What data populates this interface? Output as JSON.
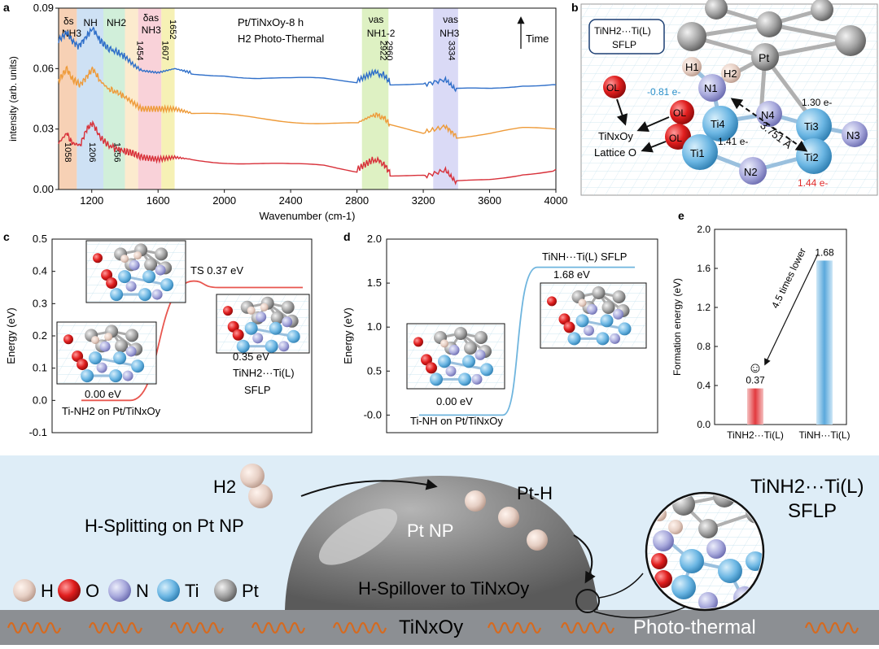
{
  "colors": {
    "blue": "#2f6fc9",
    "orange": "#ee9b3a",
    "red": "#d8313a",
    "ti": "#6bb6e3",
    "n": "#a8a9dc",
    "o": "#d91e1e",
    "h": "#e6cfc4",
    "pt": "#999999",
    "bg_panel_f": "#deedf7"
  },
  "panel_labels": {
    "a": "a",
    "b": "b",
    "c": "c",
    "d": "d",
    "e": "e",
    "f": "f"
  },
  "chart_data": [
    {
      "id": "a",
      "type": "line",
      "title": "Pt/TiNxOy-8 h",
      "subtitle": "H2 Photo-Thermal",
      "xlabel": "Wavenumber (cm-1)",
      "ylabel": "intensity (arb. units)",
      "xlim": [
        1000,
        4000
      ],
      "ylim": [
        0.0,
        0.09
      ],
      "xticks": [
        "1200",
        "1600",
        "2000",
        "2400",
        "2800",
        "3200",
        "3600",
        "4000"
      ],
      "yticks": [
        "0.00",
        "0.03",
        "0.06",
        "0.09"
      ],
      "arrow_label": "Time",
      "bands": [
        {
          "x0": 1000,
          "x1": 1110,
          "color": "#f6c9a8",
          "label": "δs NH3"
        },
        {
          "x0": 1110,
          "x1": 1270,
          "color": "#c6dcf2",
          "label": "NH"
        },
        {
          "x0": 1270,
          "x1": 1400,
          "color": "#c9ecd4",
          "label": "NH2"
        },
        {
          "x0": 1400,
          "x1": 1480,
          "color": "#fbe8c6",
          "label": ""
        },
        {
          "x0": 1480,
          "x1": 1620,
          "color": "#f8cad2",
          "label": "δas NH3"
        },
        {
          "x0": 1620,
          "x1": 1700,
          "color": "#f4efa8",
          "label": ""
        },
        {
          "x0": 2830,
          "x1": 2990,
          "color": "#d8efb8",
          "label": "νas NH1-2"
        },
        {
          "x0": 3260,
          "x1": 3410,
          "color": "#d4d4f4",
          "label": "νas NH3"
        }
      ],
      "peak_labels_top": [
        "1454",
        "1607",
        "1652",
        "2922",
        "2960",
        "3334"
      ],
      "peak_labels_bottom": [
        "1058",
        "1206",
        "1356"
      ],
      "series": [
        {
          "color": "#2f6fc9",
          "points": [
            [
              1000,
              0.074
            ],
            [
              1050,
              0.078
            ],
            [
              1080,
              0.074
            ],
            [
              1120,
              0.071
            ],
            [
              1160,
              0.075
            ],
            [
              1206,
              0.08
            ],
            [
              1250,
              0.074
            ],
            [
              1300,
              0.07
            ],
            [
              1356,
              0.068
            ],
            [
              1400,
              0.066
            ],
            [
              1450,
              0.062
            ],
            [
              1500,
              0.059
            ],
            [
              1600,
              0.058
            ],
            [
              1700,
              0.06
            ],
            [
              1800,
              0.058
            ],
            [
              2000,
              0.058
            ],
            [
              2200,
              0.056
            ],
            [
              2400,
              0.055
            ],
            [
              2600,
              0.055
            ],
            [
              2800,
              0.054
            ],
            [
              2900,
              0.058
            ],
            [
              2960,
              0.057
            ],
            [
              3000,
              0.053
            ],
            [
              3200,
              0.052
            ],
            [
              3334,
              0.055
            ],
            [
              3400,
              0.049
            ],
            [
              3600,
              0.05
            ],
            [
              3800,
              0.052
            ],
            [
              4000,
              0.052
            ]
          ]
        },
        {
          "color": "#ee9b3a",
          "points": [
            [
              1000,
              0.054
            ],
            [
              1050,
              0.06
            ],
            [
              1080,
              0.055
            ],
            [
              1130,
              0.052
            ],
            [
              1170,
              0.056
            ],
            [
              1206,
              0.06
            ],
            [
              1250,
              0.054
            ],
            [
              1300,
              0.05
            ],
            [
              1356,
              0.048
            ],
            [
              1400,
              0.046
            ],
            [
              1450,
              0.043
            ],
            [
              1500,
              0.04
            ],
            [
              1600,
              0.04
            ],
            [
              1700,
              0.04
            ],
            [
              1800,
              0.038
            ],
            [
              2000,
              0.037
            ],
            [
              2200,
              0.036
            ],
            [
              2400,
              0.035
            ],
            [
              2600,
              0.034
            ],
            [
              2800,
              0.033
            ],
            [
              2900,
              0.037
            ],
            [
              2960,
              0.036
            ],
            [
              3000,
              0.032
            ],
            [
              3200,
              0.029
            ],
            [
              3334,
              0.032
            ],
            [
              3400,
              0.027
            ],
            [
              3600,
              0.028
            ],
            [
              3800,
              0.03
            ],
            [
              4000,
              0.03
            ]
          ]
        },
        {
          "color": "#d8313a",
          "points": [
            [
              1000,
              0.023
            ],
            [
              1050,
              0.028
            ],
            [
              1080,
              0.023
            ],
            [
              1130,
              0.022
            ],
            [
              1170,
              0.03
            ],
            [
              1206,
              0.033
            ],
            [
              1250,
              0.026
            ],
            [
              1300,
              0.022
            ],
            [
              1356,
              0.02
            ],
            [
              1400,
              0.019
            ],
            [
              1450,
              0.018
            ],
            [
              1500,
              0.016
            ],
            [
              1600,
              0.015
            ],
            [
              1700,
              0.016
            ],
            [
              1800,
              0.015
            ],
            [
              2000,
              0.014
            ],
            [
              2200,
              0.013
            ],
            [
              2400,
              0.012
            ],
            [
              2600,
              0.012
            ],
            [
              2800,
              0.01
            ],
            [
              2900,
              0.015
            ],
            [
              2960,
              0.013
            ],
            [
              3000,
              0.008
            ],
            [
              3200,
              0.007
            ],
            [
              3334,
              0.01
            ],
            [
              3400,
              0.004
            ],
            [
              3600,
              0.006
            ],
            [
              3800,
              0.009
            ],
            [
              4000,
              0.01
            ]
          ]
        }
      ]
    },
    {
      "id": "c",
      "type": "line",
      "ylabel": "Energy (eV)",
      "ylim": [
        -0.1,
        0.5
      ],
      "yticks": [
        "-0.1",
        "0.0",
        "0.1",
        "0.2",
        "0.3",
        "0.4",
        "0.5"
      ],
      "series": [
        {
          "color": "#e8564f",
          "points": [
            [
              0,
              0.0
            ],
            [
              1,
              0.0
            ],
            [
              2,
              0.37
            ],
            [
              3,
              0.35
            ]
          ]
        }
      ],
      "annotations": {
        "ts": "TS 0.37 eV",
        "initial_energy": "0.00 eV",
        "initial_label": "Ti-NH2 on Pt/TiNxOy",
        "final_energy": "0.35 eV",
        "final_label_1": "TiNH2···Ti(L)",
        "final_label_2": "SFLP"
      }
    },
    {
      "id": "d",
      "type": "line",
      "ylabel": "Energy (eV)",
      "ylim": [
        -0.2,
        2.0
      ],
      "yticks": [
        "-0.0",
        "0.5",
        "1.0",
        "1.5",
        "2.0"
      ],
      "series": [
        {
          "color": "#6fb5de",
          "points": [
            [
              0,
              0.0
            ],
            [
              1,
              0.0
            ],
            [
              2,
              1.68
            ],
            [
              3,
              1.68
            ]
          ]
        }
      ],
      "annotations": {
        "final_label": "TiNH···Ti(L) SFLP",
        "final_energy": "1.68 eV",
        "initial_energy": "0.00 eV",
        "initial_label": "Ti-NH on Pt/TiNxOy"
      }
    },
    {
      "id": "e",
      "type": "bar",
      "ylabel": "Formation energy (eV)",
      "ylim": [
        0.0,
        2.0
      ],
      "yticks": [
        "0.0",
        "0.4",
        "0.8",
        "1.2",
        "1.6",
        "2.0"
      ],
      "categories": [
        "TiNH2···Ti(L)",
        "TiNH···Ti(L)"
      ],
      "values": [
        0.37,
        1.68
      ],
      "value_labels": [
        "0.37",
        "1.68"
      ],
      "annotation": "4.5 times lower",
      "smiley": "☺"
    }
  ],
  "panel_b": {
    "box_title_1": "TiNH2···Ti(L)",
    "box_title_2": "SFLP",
    "charges": [
      "-0.81 e-",
      "1.30 e-",
      "1.41 e-",
      "1.44 e-"
    ],
    "distance": "3.751 Å",
    "lattice": "Lattice O",
    "tinxoy": "TiNxOy",
    "atoms": [
      "Pt",
      "H1",
      "H2",
      "N1",
      "N2",
      "N3",
      "N4",
      "Ti1",
      "Ti2",
      "Ti3",
      "Ti4",
      "OL"
    ]
  },
  "panel_f": {
    "h2": "H2",
    "h_splitting": "H-Splitting on Pt NP",
    "pt_np": "Pt NP",
    "pt_h": "Pt-H",
    "spillover": "H-Spillover to TiNxOy",
    "sflp_1": "TiNH2···Ti(L)",
    "sflp_2": "SFLP",
    "substrate": "TiNxOy",
    "photothermal": "Photo-thermal",
    "legend": [
      {
        "symbol": "H",
        "color": "#e6cfc4"
      },
      {
        "symbol": "O",
        "color": "#d91e1e"
      },
      {
        "symbol": "N",
        "color": "#a8a9dc"
      },
      {
        "symbol": "Ti",
        "color": "#6bb6e3"
      },
      {
        "symbol": "Pt",
        "color": "#999999"
      }
    ]
  }
}
